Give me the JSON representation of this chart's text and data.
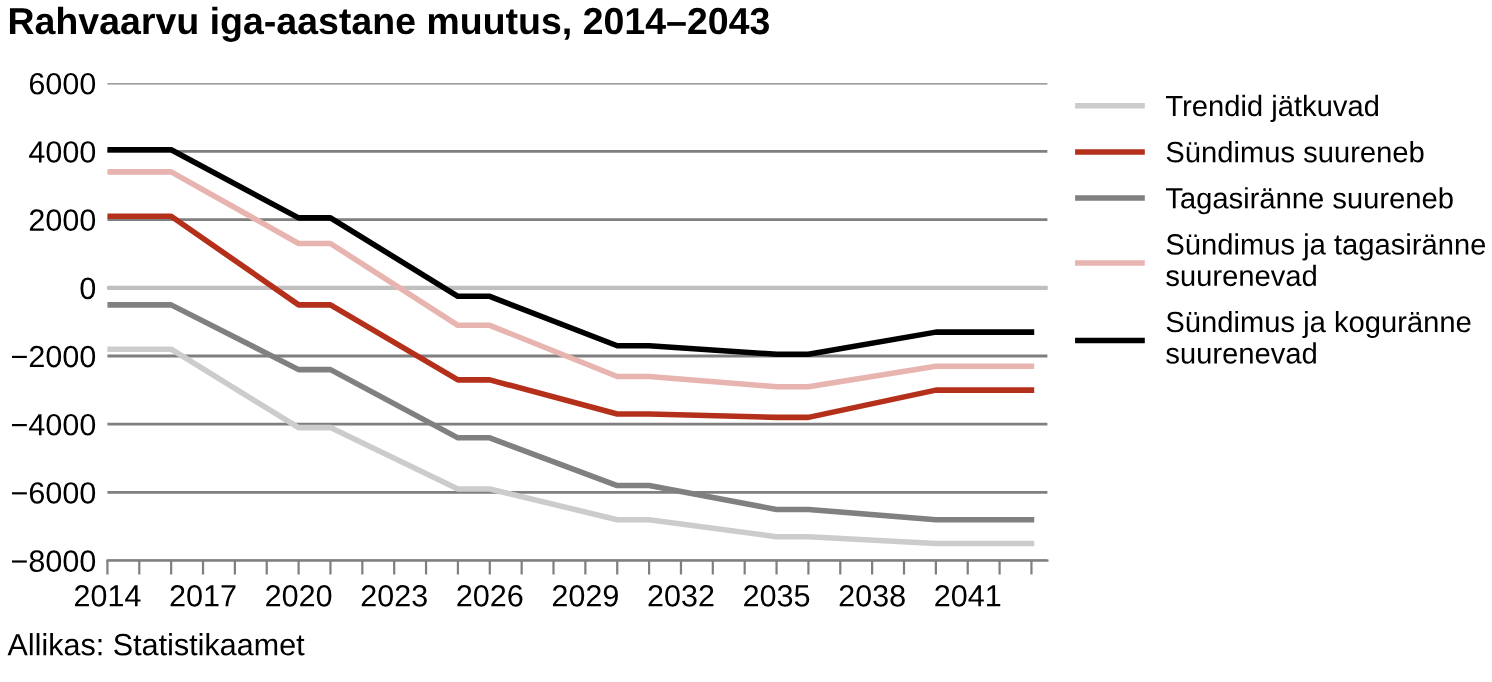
{
  "chart_data": {
    "type": "line",
    "title": "Rahvaarvu iga-aastane muutus, 2014–2043",
    "x": [
      2014,
      2016,
      2020,
      2021,
      2025,
      2026,
      2030,
      2031,
      2035,
      2036,
      2040,
      2043
    ],
    "series": [
      {
        "name": "Trendid jätkuvad",
        "color": "#cccccc",
        "values": [
          -1800,
          -1800,
          -4100,
          -4100,
          -5900,
          -5900,
          -6800,
          -6800,
          -7300,
          -7300,
          -7500,
          -7500
        ]
      },
      {
        "name": "Sündimus suureneb",
        "color": "#b5301b",
        "values": [
          2100,
          2100,
          -500,
          -500,
          -2700,
          -2700,
          -3700,
          -3700,
          -3800,
          -3800,
          -3000,
          -3000
        ]
      },
      {
        "name": "Tagasiränne suureneb",
        "color": "#808080",
        "values": [
          -500,
          -500,
          -2400,
          -2400,
          -4400,
          -4400,
          -5800,
          -5800,
          -6500,
          -6500,
          -6800,
          -6800
        ]
      },
      {
        "name": "Sündimus ja tagasiränne\nsuurenevad",
        "color": "#e8b4b0",
        "values": [
          3400,
          3400,
          1300,
          1300,
          -1100,
          -1100,
          -2600,
          -2600,
          -2900,
          -2900,
          -2300,
          -2300
        ]
      },
      {
        "name": "Sündimus ja koguränne\nsuurenevad",
        "color": "#000000",
        "values": [
          4050,
          4050,
          2050,
          2050,
          -250,
          -250,
          -1700,
          -1700,
          -1950,
          -1950,
          -1300,
          -1300
        ]
      }
    ],
    "xlim": [
      2014,
      2043.5
    ],
    "xticks": [
      2014,
      {
        "value": 2015,
        "label": null
      },
      {
        "value": 2016,
        "label": null
      },
      2017,
      {
        "value": 2018,
        "label": null
      },
      {
        "value": 2019,
        "label": null
      },
      2020,
      {
        "value": 2021,
        "label": null
      },
      {
        "value": 2022,
        "label": null
      },
      2023,
      {
        "value": 2024,
        "label": null
      },
      {
        "value": 2025,
        "label": null
      },
      2026,
      {
        "value": 2027,
        "label": null
      },
      {
        "value": 2028,
        "label": null
      },
      2029,
      {
        "value": 2030,
        "label": null
      },
      {
        "value": 2031,
        "label": null
      },
      2032,
      {
        "value": 2033,
        "label": null
      },
      {
        "value": 2034,
        "label": null
      },
      2035,
      {
        "value": 2036,
        "label": null
      },
      {
        "value": 2037,
        "label": null
      },
      2038,
      {
        "value": 2039,
        "label": null
      },
      {
        "value": 2040,
        "label": null
      },
      2041,
      {
        "value": 2042,
        "label": null
      },
      {
        "value": 2043,
        "label": null
      }
    ],
    "ylim": [
      -8000,
      6000
    ],
    "yticks": [
      -8000,
      -6000,
      -4000,
      -2000,
      0,
      2000,
      4000,
      6000
    ],
    "grid": "y",
    "ref_lines": [
      {
        "axis": "y",
        "value": 0,
        "color": "#bfbfbf"
      }
    ],
    "legend": "right",
    "marker": "none",
    "line_style": "solid",
    "annotations": [
      "Allikas: Statistikaamet"
    ]
  }
}
